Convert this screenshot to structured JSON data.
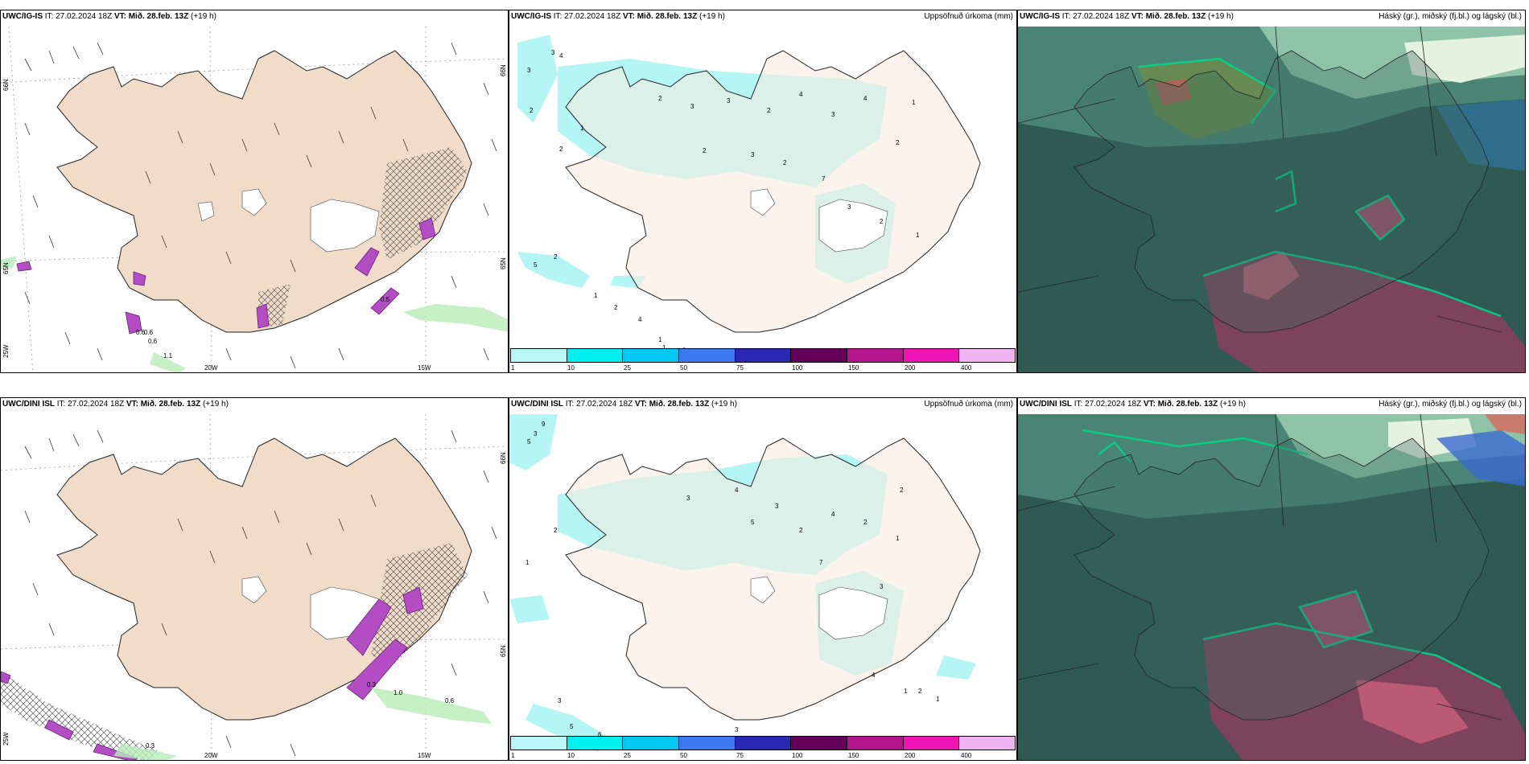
{
  "wind_header_top": {
    "prefix": "UWC/IG-IS",
    "it": " IT: 27.02.2024 18Z ",
    "vt": "VT: Mið. 28.feb. 13Z",
    "lead": " (+19 h)"
  },
  "precip_header_top": {
    "prefix": "UWC/IG-IS",
    "it": " IT: 27.02.2024 18Z ",
    "vt": "VT: Mið. 28.feb. 13Z",
    "lead": " (+19 h)",
    "right": "Uppsöfnuð úrkoma (mm)"
  },
  "cloud_header_top": {
    "prefix": "UWC/IG-IS",
    "it": " IT: 27.02.2024 18Z ",
    "vt": "VT: Mið. 28.feb. 13Z",
    "lead": " (+19 h)",
    "right": "Háský (gr.), miðský (fj.bl.) og lágský (bl.)"
  },
  "wind_header_bottom": {
    "prefix": "UWC/DINI ISL",
    "it": " IT: 27.02.2024 18Z ",
    "vt": "VT: Mið. 28.feb. 13Z",
    "lead": " (+19 h)"
  },
  "precip_header_bottom": {
    "prefix": "UWC/DINI ISL",
    "it": " IT: 27.02.2024 18Z ",
    "vt": "VT: Mið. 28.feb. 13Z",
    "lead": " (+19 h)",
    "right": "Uppsöfnuð úrkoma (mm)"
  },
  "cloud_header_bottom": {
    "prefix": "UWC/DINI ISL",
    "it": " IT: 27.02.2024 18Z ",
    "vt": "VT: Mið. 28.feb. 13Z",
    "lead": " (+19 h)",
    "right": "Háský (gr.), miðský (fj.bl.) og lágský (bl.)"
  },
  "grid_labels": {
    "w20": "20W",
    "w15": "15W",
    "w25": "25W",
    "n65": "65N",
    "n66": "66N"
  },
  "colorbar": {
    "ticks": [
      "1",
      "10",
      "25",
      "50",
      "75",
      "100",
      "150",
      "200",
      "400"
    ],
    "colors": [
      "#b8f7f7",
      "#00f0f0",
      "#00c8f0",
      "#3c78f0",
      "#2828b4",
      "#64005a",
      "#b4148c",
      "#f014b4",
      "#f0b4f0"
    ]
  },
  "wind_labels_top": [
    "0.6",
    "0.6",
    "0.6",
    "1.1",
    "0.5"
  ],
  "wind_labels_bottom": [
    "0.3",
    "1.0",
    "0.6",
    "0.3"
  ],
  "precip_nums_top": [
    "3",
    "4",
    "3",
    "2",
    "1",
    "2",
    "2",
    "3",
    "3",
    "2",
    "4",
    "3",
    "4",
    "2",
    "3",
    "2",
    "1",
    "2",
    "5",
    "2",
    "1",
    "2",
    "4",
    "1",
    "1",
    "1",
    "7",
    "3",
    "2",
    "1"
  ],
  "precip_nums_bottom": [
    "9",
    "3",
    "5",
    "2",
    "1",
    "3",
    "4",
    "5",
    "3",
    "2",
    "4",
    "2",
    "7",
    "3",
    "2",
    "1",
    "4",
    "1",
    "2",
    "1",
    "3",
    "5",
    "6",
    "3"
  ]
}
